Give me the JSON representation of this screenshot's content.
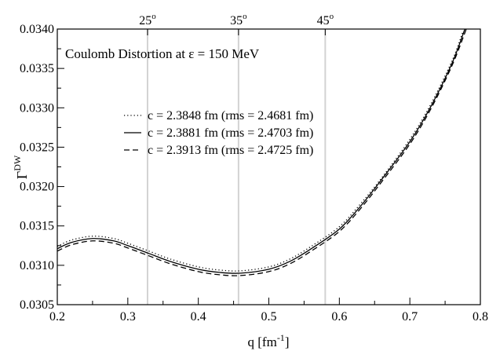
{
  "chart_data": {
    "type": "line",
    "annotation": "Coulomb Distortion at ε = 150 MeV",
    "xlabel": {
      "main": "q [fm",
      "sup": "-1",
      "close": "]"
    },
    "ylabel": {
      "main": "Γ",
      "sup": "DW"
    },
    "xlim": [
      0.2,
      0.8
    ],
    "ylim": [
      0.0305,
      0.034
    ],
    "xticks": [
      "0.2",
      "0.3",
      "0.4",
      "0.5",
      "0.6",
      "0.7",
      "0.8"
    ],
    "yticks": [
      "0.0305",
      "0.0310",
      "0.0315",
      "0.0320",
      "0.0325",
      "0.0330",
      "0.0335",
      "0.0340"
    ],
    "top_axis": {
      "ticks": [
        {
          "q": 0.328,
          "label": "25",
          "sup": "o"
        },
        {
          "q": 0.457,
          "label": "35",
          "sup": "o"
        },
        {
          "q": 0.58,
          "label": "45",
          "sup": "o"
        }
      ]
    },
    "reference_lines": {
      "q": [
        0.328,
        0.457,
        0.58
      ],
      "color": "#d3d3d3"
    },
    "legend_position": "center-left",
    "series": [
      {
        "name": "c = 2.3848 fm (rms = 2.4681 fm)",
        "dash": "dotted",
        "x": [
          0.2,
          0.22,
          0.25,
          0.28,
          0.3,
          0.33,
          0.36,
          0.4,
          0.43,
          0.46,
          0.5,
          0.53,
          0.56,
          0.6,
          0.63,
          0.66,
          0.7,
          0.73,
          0.76,
          0.775
        ],
        "y": [
          0.03124,
          0.03132,
          0.03137,
          0.03134,
          0.03128,
          0.03118,
          0.03108,
          0.03098,
          0.03094,
          0.03093,
          0.03098,
          0.03108,
          0.03124,
          0.03149,
          0.03178,
          0.03211,
          0.0326,
          0.03305,
          0.0336,
          0.03396
        ]
      },
      {
        "name": "c = 2.3881 fm (rms = 2.4703 fm)",
        "dash": "solid",
        "x": [
          0.2,
          0.22,
          0.25,
          0.28,
          0.3,
          0.33,
          0.36,
          0.4,
          0.43,
          0.46,
          0.5,
          0.53,
          0.56,
          0.6,
          0.63,
          0.66,
          0.7,
          0.73,
          0.76,
          0.778
        ],
        "y": [
          0.03121,
          0.03129,
          0.03134,
          0.03131,
          0.03125,
          0.03115,
          0.03105,
          0.03095,
          0.03091,
          0.0309,
          0.03095,
          0.03105,
          0.03121,
          0.03146,
          0.03175,
          0.03209,
          0.03257,
          0.03302,
          0.03357,
          0.034
        ]
      },
      {
        "name": "c = 2.3913 fm (rms = 2.4725 fm)",
        "dash": "dashed",
        "x": [
          0.2,
          0.22,
          0.25,
          0.28,
          0.3,
          0.33,
          0.36,
          0.4,
          0.43,
          0.46,
          0.5,
          0.53,
          0.56,
          0.6,
          0.63,
          0.66,
          0.7,
          0.73,
          0.76,
          0.78
        ],
        "y": [
          0.03118,
          0.03126,
          0.03131,
          0.03128,
          0.03122,
          0.03112,
          0.03102,
          0.03092,
          0.03088,
          0.03087,
          0.03092,
          0.03102,
          0.03118,
          0.03143,
          0.03172,
          0.03206,
          0.03254,
          0.03299,
          0.03354,
          0.034
        ]
      }
    ]
  }
}
